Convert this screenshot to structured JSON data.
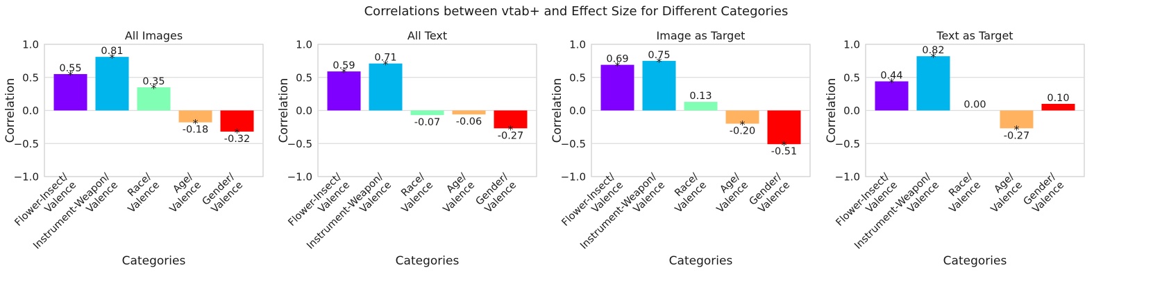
{
  "figure_title": "Correlations between vtab+ and Effect Size for Different Categories",
  "chart_data": [
    {
      "type": "bar",
      "title": "All Images",
      "xlabel": "Categories",
      "ylabel": "Correlation",
      "ylim": [
        -1.0,
        1.0
      ],
      "yticks": [
        "1.0",
        "0.5",
        "0.0",
        "−0.5",
        "−1.0"
      ],
      "grid": true,
      "categories": [
        "Flower-Insect/ Valence",
        "Instrument-Weapon/ Valence",
        "Race/ Valence",
        "Age/ Valence",
        "Gender/ Valence"
      ],
      "values": [
        0.55,
        0.81,
        0.35,
        -0.18,
        -0.32
      ],
      "value_labels": [
        "0.55",
        "0.81",
        "0.35",
        "-0.18",
        "-0.32"
      ],
      "significant": [
        "*",
        "*",
        "*",
        "*",
        "*"
      ]
    },
    {
      "type": "bar",
      "title": "All Text",
      "xlabel": "Categories",
      "ylabel": "Correlation",
      "ylim": [
        -1.0,
        1.0
      ],
      "yticks": [
        "1.0",
        "0.5",
        "0.0",
        "−0.5",
        "−1.0"
      ],
      "grid": true,
      "categories": [
        "Flower-Insect/ Valence",
        "Instrument-Weapon/ Valence",
        "Race/ Valence",
        "Age/ Valence",
        "Gender/ Valence"
      ],
      "values": [
        0.59,
        0.71,
        -0.07,
        -0.06,
        -0.27
      ],
      "value_labels": [
        "0.59",
        "0.71",
        "-0.07",
        "-0.06",
        "-0.27"
      ],
      "significant": [
        "*",
        "*",
        "",
        "",
        "*"
      ]
    },
    {
      "type": "bar",
      "title": "Image as Target",
      "xlabel": "Categories",
      "ylabel": "Correlation",
      "ylim": [
        -1.0,
        1.0
      ],
      "yticks": [
        "1.0",
        "0.5",
        "0.0",
        "−0.5",
        "−1.0"
      ],
      "grid": true,
      "categories": [
        "Flower-Insect/ Valence",
        "Instrument-Weapon/ Valence",
        "Race/ Valence",
        "Age/ Valence",
        "Gender/ Valence"
      ],
      "values": [
        0.69,
        0.75,
        0.13,
        -0.2,
        -0.51
      ],
      "value_labels": [
        "0.69",
        "0.75",
        "0.13",
        "-0.20",
        "-0.51"
      ],
      "significant": [
        "*",
        "*",
        "",
        "*",
        "*"
      ]
    },
    {
      "type": "bar",
      "title": "Text as Target",
      "xlabel": "Categories",
      "ylabel": "Correlation",
      "ylim": [
        -1.0,
        1.0
      ],
      "yticks": [
        "1.0",
        "0.5",
        "0.0",
        "−0.5",
        "−1.0"
      ],
      "grid": true,
      "categories": [
        "Flower-Insect/ Valence",
        "Instrument-Weapon/ Valence",
        "Race/ Valence",
        "Age/ Valence",
        "Gender/ Valence"
      ],
      "values": [
        0.44,
        0.82,
        0.0,
        -0.27,
        0.1
      ],
      "value_labels": [
        "0.44",
        "0.82",
        "0.00",
        "-0.27",
        "0.10"
      ],
      "significant": [
        "*",
        "*",
        "",
        "*",
        ""
      ]
    }
  ],
  "bar_colors": [
    "#8000ff",
    "#00b4ec",
    "#80ffb4",
    "#ffb360",
    "#ff0000"
  ],
  "colors": {
    "frame": "#cccccc",
    "grid": "#dcdcdc",
    "text": "#1a1a1a"
  }
}
